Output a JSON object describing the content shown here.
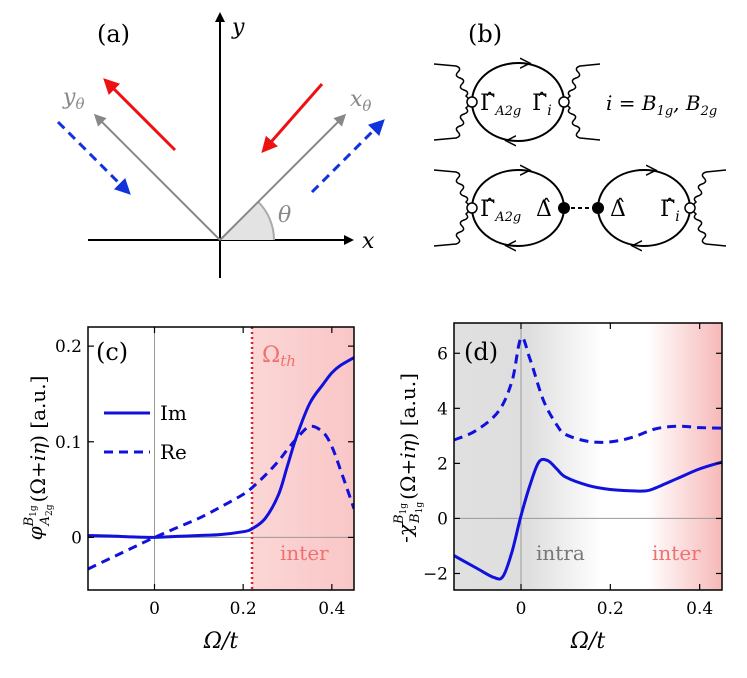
{
  "panels": {
    "a": {
      "label": "(a)",
      "axis_x": "x",
      "axis_y": "y",
      "axis_x_theta": "xθ",
      "axis_y_theta": "yθ",
      "angle": "θ",
      "colors": {
        "solid_arrow": "#ee1111",
        "dashed_arrow": "#1133dd",
        "rotated_axes": "#888888"
      }
    },
    "b": {
      "label": "(b)",
      "vertex_a2g": "Γ̂",
      "vertex_a2g_sub": "A2g",
      "vertex_i": "Γ̂",
      "vertex_i_sub": "i",
      "delta": "Δ̂",
      "index_eq": "i = B1g, B2g",
      "index_eq_parts": {
        "prefix": "i = B",
        "s1": "1g",
        "mid": ", B",
        "s2": "2g"
      }
    }
  },
  "chart_data": [
    {
      "panel": "(c)",
      "type": "line",
      "ylabel": "φ^{B1g}_{A2g}(Ω+iη) [a.u.]",
      "xlabel": "Ω/t",
      "xlim": [
        -0.15,
        0.45
      ],
      "ylim": [
        -0.055,
        0.22
      ],
      "xticks": [
        "0",
        "0.2",
        "0.4"
      ],
      "xtick_values": [
        0,
        0.2,
        0.4
      ],
      "yticks": [
        "0",
        "0.1",
        "0.2"
      ],
      "ytick_values": [
        0,
        0.1,
        0.2
      ],
      "threshold_x": 0.22,
      "threshold_label": "Ω_th",
      "shade_label": "inter",
      "legend": {
        "position": "left",
        "entries": [
          "Im",
          "Re"
        ]
      },
      "series": [
        {
          "name": "Im",
          "style": "solid",
          "x": [
            -0.15,
            -0.1,
            -0.05,
            0,
            0.05,
            0.1,
            0.15,
            0.2,
            0.22,
            0.25,
            0.28,
            0.3,
            0.32,
            0.35,
            0.38,
            0.4,
            0.42,
            0.45
          ],
          "y": [
            0.002,
            0.0015,
            0.0005,
            0,
            0.001,
            0.002,
            0.003,
            0.006,
            0.009,
            0.02,
            0.045,
            0.075,
            0.105,
            0.14,
            0.16,
            0.172,
            0.18,
            0.188
          ]
        },
        {
          "name": "Re",
          "style": "dashed",
          "x": [
            -0.15,
            -0.1,
            -0.05,
            0,
            0.05,
            0.1,
            0.15,
            0.2,
            0.22,
            0.25,
            0.28,
            0.3,
            0.32,
            0.35,
            0.38,
            0.4,
            0.42,
            0.45
          ],
          "y": [
            -0.033,
            -0.022,
            -0.011,
            0,
            0.01,
            0.02,
            0.032,
            0.045,
            0.052,
            0.065,
            0.08,
            0.092,
            0.103,
            0.116,
            0.11,
            0.095,
            0.07,
            0.03
          ]
        }
      ],
      "colors": {
        "line": "#1111dd",
        "threshold": "#dd2222",
        "shade": "#f8c8c8"
      }
    },
    {
      "panel": "(d)",
      "type": "line",
      "ylabel": "-χ^{B1g}_{B1g}(Ω+iη) [a.u.]",
      "xlabel": "Ω/t",
      "xlim": [
        -0.15,
        0.45
      ],
      "ylim": [
        -2.6,
        7.1
      ],
      "xticks": [
        "0",
        "0.2",
        "0.4"
      ],
      "xtick_values": [
        0,
        0.2,
        0.4
      ],
      "yticks": [
        "−2",
        "0",
        "2",
        "4",
        "6"
      ],
      "ytick_values": [
        -2,
        0,
        2,
        4,
        6
      ],
      "region_labels": [
        "intra",
        "inter"
      ],
      "series": [
        {
          "name": "Im",
          "style": "solid",
          "x": [
            -0.15,
            -0.1,
            -0.06,
            -0.04,
            -0.02,
            0,
            0.02,
            0.04,
            0.06,
            0.08,
            0.1,
            0.15,
            0.2,
            0.25,
            0.28,
            0.3,
            0.35,
            0.4,
            0.45
          ],
          "y": [
            -1.35,
            -1.8,
            -2.15,
            -2.1,
            -1.2,
            0.1,
            1.2,
            2.05,
            2.1,
            1.8,
            1.5,
            1.2,
            1.05,
            1.0,
            1.0,
            1.1,
            1.45,
            1.8,
            2.05
          ]
        },
        {
          "name": "Re",
          "style": "dashed",
          "x": [
            -0.15,
            -0.1,
            -0.05,
            -0.02,
            0,
            0.02,
            0.05,
            0.08,
            0.1,
            0.15,
            0.2,
            0.25,
            0.3,
            0.35,
            0.4,
            0.45
          ],
          "y": [
            2.85,
            3.2,
            3.9,
            5.0,
            6.55,
            5.8,
            4.3,
            3.4,
            3.05,
            2.8,
            2.78,
            2.95,
            3.25,
            3.35,
            3.3,
            3.28
          ]
        }
      ],
      "colors": {
        "line": "#1111dd",
        "shade_intra": "#dcdcdc",
        "shade_inter": "#f8c8c8"
      }
    }
  ]
}
